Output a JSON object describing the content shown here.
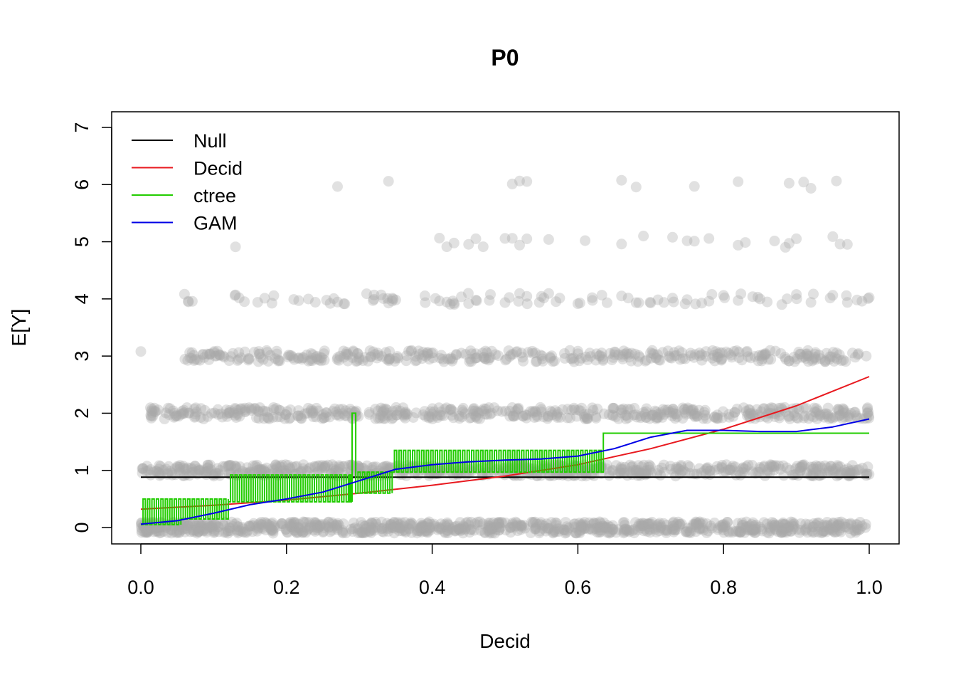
{
  "chart_data": {
    "type": "scatter",
    "title": "P0",
    "xlabel": "Decid",
    "ylabel": "E[Y]",
    "xlim": [
      0,
      1
    ],
    "ylim": [
      0,
      7
    ],
    "x_ticks": [
      "0.0",
      "0.2",
      "0.4",
      "0.6",
      "0.8",
      "1.0"
    ],
    "y_ticks": [
      "0",
      "1",
      "2",
      "3",
      "4",
      "5",
      "6",
      "7"
    ],
    "grid": false,
    "legend_position": "top-left",
    "legend": [
      {
        "label": "Null",
        "color": "#000000"
      },
      {
        "label": "Decid",
        "color": "#e8191f"
      },
      {
        "label": "ctree",
        "color": "#22cc00"
      },
      {
        "label": "GAM",
        "color": "#0000e6"
      }
    ],
    "point_color": "#a8a8a8",
    "points_note_levels": [
      0,
      1,
      2,
      3,
      4,
      5,
      6
    ],
    "points_sample": {
      "y6_x": [
        0.27,
        0.34,
        0.51,
        0.52,
        0.53,
        0.66,
        0.68,
        0.76,
        0.82,
        0.89,
        0.91,
        0.92,
        0.955
      ],
      "y5_x": [
        0.13,
        0.41,
        0.42,
        0.43,
        0.45,
        0.46,
        0.47,
        0.5,
        0.51,
        0.52,
        0.53,
        0.56,
        0.61,
        0.66,
        0.69,
        0.73,
        0.75,
        0.76,
        0.78,
        0.82,
        0.83,
        0.87,
        0.885,
        0.89,
        0.9,
        0.95,
        0.96,
        0.97
      ],
      "y4_x": [
        0.06,
        0.065,
        0.13,
        0.135,
        0.17,
        0.18,
        0.21,
        0.23,
        0.26,
        0.27,
        0.28,
        0.31,
        0.32,
        0.33,
        0.34,
        0.345,
        0.35,
        0.39,
        0.41,
        0.42,
        0.43,
        0.44,
        0.45,
        0.46,
        0.48,
        0.5,
        0.52,
        0.53,
        0.55,
        0.56,
        0.57,
        0.6,
        0.62,
        0.64,
        0.66,
        0.68,
        0.7,
        0.71,
        0.73,
        0.75,
        0.77,
        0.78,
        0.8,
        0.82,
        0.84,
        0.86,
        0.88,
        0.9,
        0.92,
        0.95,
        0.97,
        0.99,
        1.0
      ]
    },
    "series": [
      {
        "name": "Null",
        "color": "#000000",
        "x": [
          0,
          1
        ],
        "y": [
          0.88,
          0.88
        ]
      },
      {
        "name": "Decid",
        "color": "#e8191f",
        "x": [
          0,
          0.1,
          0.2,
          0.3,
          0.4,
          0.5,
          0.6,
          0.7,
          0.8,
          0.9,
          1.0
        ],
        "y": [
          0.32,
          0.39,
          0.48,
          0.6,
          0.74,
          0.9,
          1.1,
          1.38,
          1.72,
          2.13,
          2.64
        ]
      },
      {
        "name": "ctree",
        "color": "#22cc00",
        "x": [
          0,
          0.055,
          0.12,
          0.285,
          0.29,
          0.295,
          0.345,
          0.635,
          1.0
        ],
        "y_low": [
          0.05,
          0.15,
          0.45,
          0.45,
          2.0,
          0.6,
          0.97,
          1.65,
          1.65
        ],
        "y_high": [
          0.5,
          0.5,
          0.92,
          0.92,
          2.0,
          0.97,
          1.35,
          1.65,
          1.65
        ]
      },
      {
        "name": "GAM",
        "color": "#0000e6",
        "x": [
          0,
          0.05,
          0.1,
          0.15,
          0.2,
          0.25,
          0.3,
          0.35,
          0.4,
          0.45,
          0.5,
          0.55,
          0.6,
          0.65,
          0.7,
          0.75,
          0.8,
          0.85,
          0.9,
          0.95,
          1.0
        ],
        "y": [
          0.06,
          0.12,
          0.25,
          0.4,
          0.5,
          0.62,
          0.82,
          1.02,
          1.1,
          1.15,
          1.18,
          1.2,
          1.25,
          1.38,
          1.58,
          1.7,
          1.7,
          1.68,
          1.68,
          1.76,
          1.9
        ]
      }
    ]
  }
}
